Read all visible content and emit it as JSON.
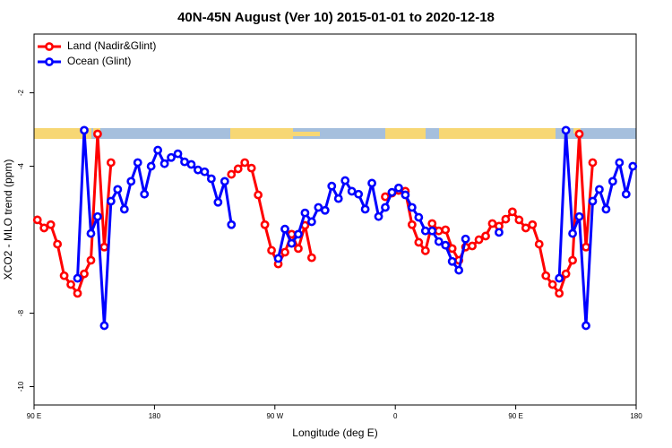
{
  "chart_data": {
    "type": "line",
    "title": "40N-45N August (Ver 10)   2015-01-01 to 2020-12-18",
    "x_label": "Longitude (deg E)",
    "y_label": "XCO2 - MLO trend (ppm)",
    "x": [
      92.5,
      97.5,
      102.5,
      107.5,
      112.5,
      117.5,
      122.5,
      127.5,
      132.5,
      137.5,
      142.5,
      147.5,
      152.5,
      157.5,
      162.5,
      167.5,
      172.5,
      177.5,
      182.5,
      187.5,
      192.5,
      197.5,
      202.5,
      207.5,
      212.5,
      217.5,
      222.5,
      227.5,
      232.5,
      237.5,
      242.5,
      247.5,
      252.5,
      257.5,
      262.5,
      267.5,
      272.5,
      277.5,
      282.5,
      287.5,
      292.5,
      297.5,
      302.5,
      307.5,
      312.5,
      317.5,
      322.5,
      327.5,
      332.5,
      337.5,
      342.5,
      347.5,
      352.5,
      357.5,
      362.5,
      367.5,
      372.5,
      377.5,
      382.5,
      387.5,
      392.5,
      397.5,
      402.5,
      407.5,
      412.5,
      417.5,
      422.5,
      427.5,
      432.5,
      437.5,
      442.5,
      447.5,
      452.5,
      457.5,
      462.5,
      467.5,
      472.5,
      477.5,
      482.5,
      487.5,
      492.5,
      497.5,
      502.5,
      507.5,
      512.5,
      517.5,
      522.5,
      527.5,
      532.5,
      537.5
    ],
    "series": [
      {
        "name": "Land (Nadir&Glint)",
        "color": "#ff0000",
        "values": [
          -5.46,
          -5.68,
          -5.59,
          -6.12,
          -6.98,
          -7.22,
          -7.46,
          -6.93,
          -6.56,
          -3.12,
          -6.2,
          -3.9,
          null,
          null,
          null,
          null,
          null,
          null,
          null,
          null,
          null,
          null,
          null,
          null,
          null,
          null,
          null,
          null,
          null,
          -4.22,
          -4.07,
          -3.9,
          -4.05,
          -4.78,
          -5.59,
          -6.29,
          -6.66,
          -6.34,
          -5.85,
          -6.24,
          -5.61,
          -6.49,
          null,
          null,
          null,
          null,
          null,
          null,
          null,
          null,
          null,
          null,
          -4.83,
          -4.73,
          -4.66,
          -4.68,
          -5.59,
          -6.07,
          -6.3,
          -5.56,
          -5.76,
          -5.73,
          -6.24,
          -6.56,
          -6.2,
          -6.17,
          -6.0,
          -5.9,
          -5.56,
          -5.63,
          -5.44,
          -5.24,
          -5.46,
          -5.68,
          -5.59,
          -6.12,
          -6.98,
          -7.22,
          -7.46,
          -6.93,
          -6.56,
          -3.12,
          -6.2,
          -3.9,
          null,
          null,
          null,
          null,
          null,
          null
        ]
      },
      {
        "name": "Ocean (Glint)",
        "color": "#0000ff",
        "values": [
          null,
          null,
          null,
          null,
          null,
          null,
          -7.05,
          -3.02,
          -5.83,
          -5.37,
          -8.34,
          -4.95,
          -4.63,
          -5.17,
          -4.41,
          -3.9,
          -4.76,
          -4.0,
          -3.56,
          -3.93,
          -3.76,
          -3.66,
          -3.88,
          -3.95,
          -4.1,
          -4.15,
          -4.34,
          -4.98,
          -4.41,
          -5.59,
          null,
          null,
          null,
          null,
          null,
          null,
          -6.51,
          -5.71,
          -6.1,
          -5.85,
          -5.27,
          -5.51,
          -5.12,
          -5.2,
          -4.54,
          -4.88,
          -4.39,
          -4.68,
          -4.76,
          -5.17,
          -4.46,
          -5.37,
          -5.12,
          -4.71,
          -4.59,
          -4.78,
          -5.12,
          -5.39,
          -5.76,
          -5.76,
          -6.05,
          -6.15,
          -6.59,
          -6.83,
          -5.98,
          null,
          null,
          null,
          null,
          -5.8,
          null,
          null,
          null,
          null,
          null,
          null,
          null,
          null,
          -7.05,
          -3.02,
          -5.83,
          -5.37,
          -8.34,
          -4.95,
          -4.63,
          -5.17,
          -4.41,
          -3.9,
          -4.76,
          -4.0
        ]
      }
    ],
    "xlim": [
      90,
      540
    ],
    "xticks": [
      {
        "value": 90,
        "label": "90 E"
      },
      180,
      {
        "value": 270,
        "label": "90 W"
      },
      {
        "value": 360,
        "label": "0"
      },
      {
        "value": 450,
        "label": "90 E"
      },
      {
        "value": 540,
        "label": "180"
      }
    ],
    "ylim": [
      -10.5,
      -0.4
    ],
    "yticks": [
      -2,
      -4,
      -8,
      -10
    ],
    "legend": "top-left"
  }
}
